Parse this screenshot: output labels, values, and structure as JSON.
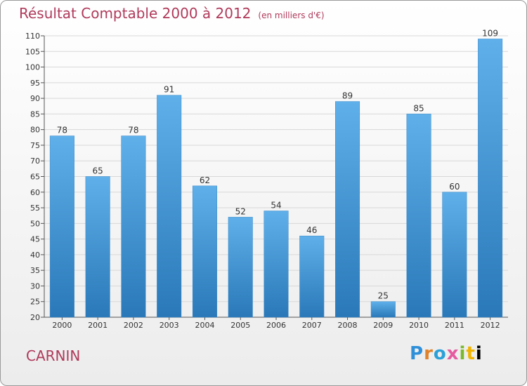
{
  "header": {
    "title": "Résultat Comptable 2000 à 2012",
    "subtitle": "(en milliers d'€)"
  },
  "footer": {
    "commune": "CARNIN",
    "logo": "Proxiti"
  },
  "colors": {
    "title": "#b03a5b",
    "bar_top": "#5fb0ea",
    "bar_bottom": "#2a78b8",
    "grid": "#d8d8d8"
  },
  "chart_data": {
    "type": "bar",
    "title": "Résultat Comptable 2000 à 2012",
    "subtitle": "(en milliers d'€)",
    "xlabel": "",
    "ylabel": "",
    "categories": [
      "2000",
      "2001",
      "2002",
      "2003",
      "2004",
      "2005",
      "2006",
      "2007",
      "2008",
      "2009",
      "2010",
      "2011",
      "2012"
    ],
    "values": [
      78,
      65,
      78,
      91,
      62,
      52,
      54,
      46,
      89,
      25,
      85,
      60,
      109
    ],
    "ylim": [
      20,
      110
    ],
    "yticks": [
      20,
      25,
      30,
      35,
      40,
      45,
      50,
      55,
      60,
      65,
      70,
      75,
      80,
      85,
      90,
      95,
      100,
      105,
      110
    ],
    "grid": true,
    "legend": "none"
  }
}
